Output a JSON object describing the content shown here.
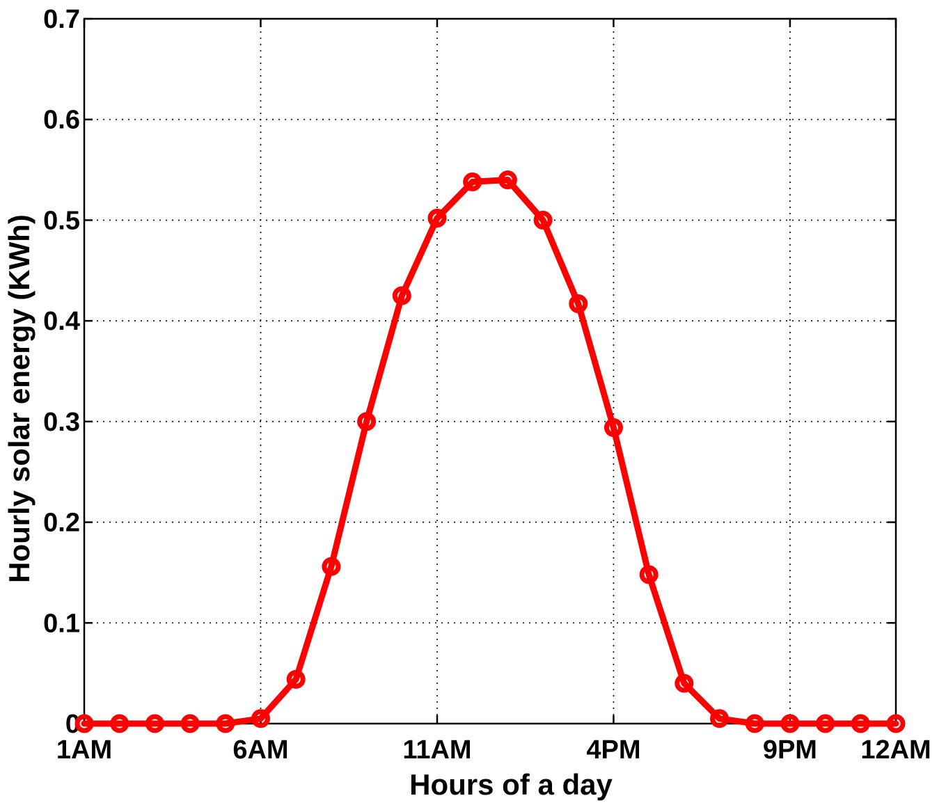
{
  "chart_data": {
    "type": "line",
    "xlabel": "Hours of a day",
    "ylabel": "Hourly solar energy  (KWh)",
    "ylim": [
      0,
      0.7
    ],
    "xlim": [
      1,
      24
    ],
    "grid": true,
    "y_ticks": [
      "0",
      "0.1",
      "0.2",
      "0.3",
      "0.4",
      "0.5",
      "0.6",
      "0.7"
    ],
    "x_ticks": [
      {
        "hour": 1,
        "label": "1AM"
      },
      {
        "hour": 6,
        "label": "6AM"
      },
      {
        "hour": 11,
        "label": "11AM"
      },
      {
        "hour": 16,
        "label": "4PM"
      },
      {
        "hour": 21,
        "label": "9PM"
      },
      {
        "hour": 24,
        "label": "12AM"
      }
    ],
    "series": [
      {
        "color": "#ff0000",
        "marker": "circle",
        "x": [
          1,
          2,
          3,
          4,
          5,
          6,
          7,
          8,
          9,
          10,
          11,
          12,
          13,
          14,
          15,
          16,
          17,
          18,
          19,
          20,
          21,
          22,
          23,
          24
        ],
        "values": [
          0,
          0,
          0,
          0,
          0,
          0.005,
          0.044,
          0.156,
          0.3,
          0.425,
          0.502,
          0.538,
          0.54,
          0.5,
          0.417,
          0.294,
          0.148,
          0.04,
          0.005,
          0,
          0,
          0,
          0,
          0
        ]
      }
    ]
  }
}
